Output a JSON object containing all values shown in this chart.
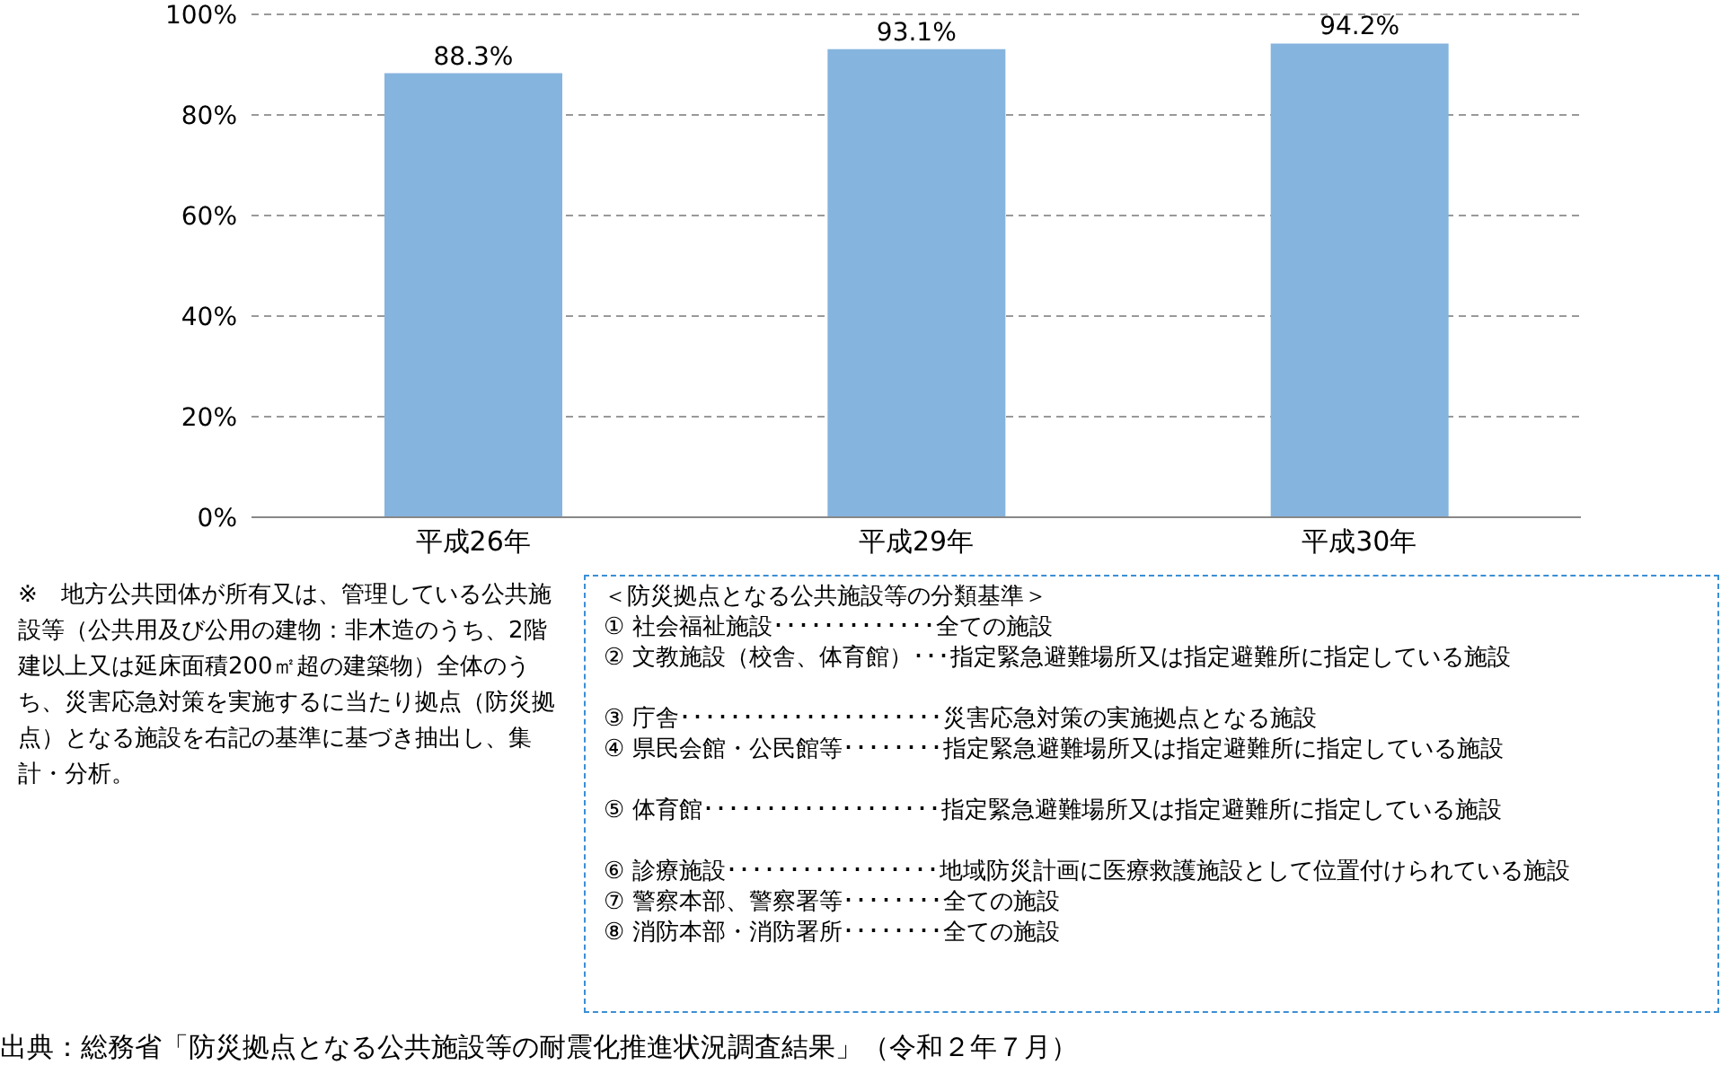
{
  "chart_data": {
    "type": "bar",
    "categories": [
      "平成26年",
      "平成29年",
      "平成30年"
    ],
    "values": [
      88.3,
      93.1,
      94.2
    ],
    "value_labels": [
      "88.3%",
      "93.1%",
      "94.2%"
    ],
    "color": "#85b4de",
    "ylim": [
      0,
      100
    ],
    "yticks": [
      {
        "value": 0,
        "label": "0%"
      },
      {
        "value": 20,
        "label": "20%"
      },
      {
        "value": 40,
        "label": "40%"
      },
      {
        "value": 60,
        "label": "60%"
      },
      {
        "value": 80,
        "label": "80%"
      },
      {
        "value": 100,
        "label": "100%"
      }
    ],
    "grid": "y",
    "legend": false,
    "annotations": [
      "※　地方公共団体が所有又は、管理している公共施設等（公共用及び公用の建物：非木造のうち、2階建以上又は延床面積200㎡超の建築物）全体のうち、災害応急対策を実施するに当たり拠点（防災拠点）となる施設を右記の基準に基づき抽出し、集計・分析。",
      "＜防災拠点となる公共施設等の分類基準＞\n① 社会福祉施設･････････････全ての施設\n② 文教施設（校舎、体育館）･･･指定緊急避難場所又は指定避難所に指定している施設\n\n③ 庁舎･････････････････････災害応急対策の実施拠点となる施設\n④ 県民会館・公民館等････････指定緊急避難場所又は指定避難所に指定している施設\n\n⑤ 体育館･･･････････････････指定緊急避難場所又は指定避難所に指定している施設\n\n⑥ 診療施設･････････････････地域防災計画に医療救護施設として位置付けられている施設\n⑦ 警察本部、警察署等････････全ての施設\n⑧ 消防本部・消防署所････････全ての施設",
      "出典：総務省「防災拠点となる公共施設等の耐震化推進状況調査結果」（令和２年７月）"
    ]
  }
}
